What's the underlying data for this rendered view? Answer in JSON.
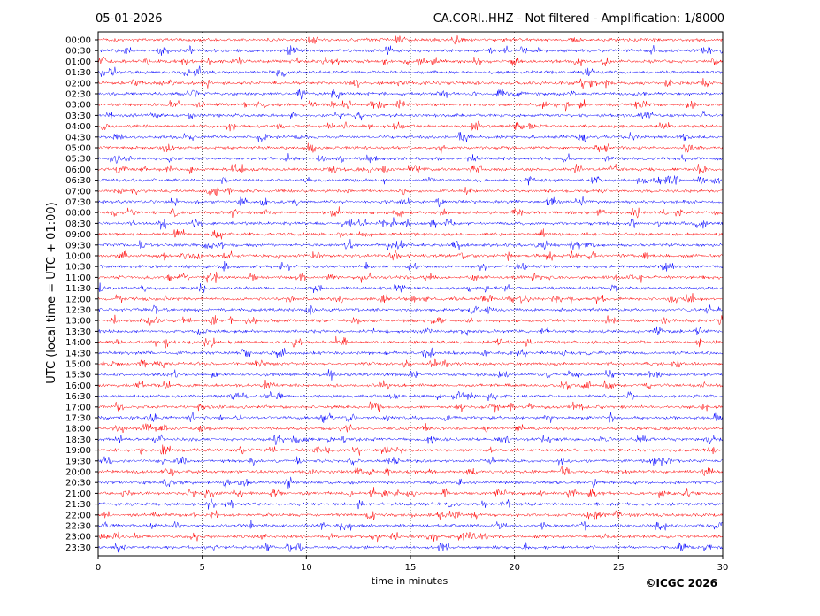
{
  "chart_data": {
    "type": "line",
    "date": "05-01-2026",
    "title": "CA.CORI..HHZ - Not filtered - Amplification: 1/8000",
    "xlabel": "time in minutes",
    "ylabel": "UTC (local time = UTC + 01:00)",
    "copyright": "©ICGC 2026",
    "xlim": [
      0,
      30
    ],
    "x_ticks": [
      0,
      5,
      10,
      15,
      20,
      25,
      30
    ],
    "grid": "vertical dotted lines at every x tick",
    "row_labels": [
      "00:00",
      "00:30",
      "01:00",
      "01:30",
      "02:00",
      "02:30",
      "03:00",
      "03:30",
      "04:00",
      "04:30",
      "05:00",
      "05:30",
      "06:00",
      "06:30",
      "07:00",
      "07:30",
      "08:00",
      "08:30",
      "09:00",
      "09:30",
      "10:00",
      "10:30",
      "11:00",
      "11:30",
      "12:00",
      "12:30",
      "13:00",
      "13:30",
      "14:00",
      "14:30",
      "15:00",
      "15:30",
      "16:00",
      "16:30",
      "17:00",
      "17:30",
      "18:00",
      "18:30",
      "19:00",
      "19:30",
      "20:00",
      "20:30",
      "21:00",
      "21:30",
      "22:00",
      "22:30",
      "23:00",
      "23:30"
    ],
    "trace_colors": [
      "#ff0000",
      "#0000ff"
    ]
  }
}
